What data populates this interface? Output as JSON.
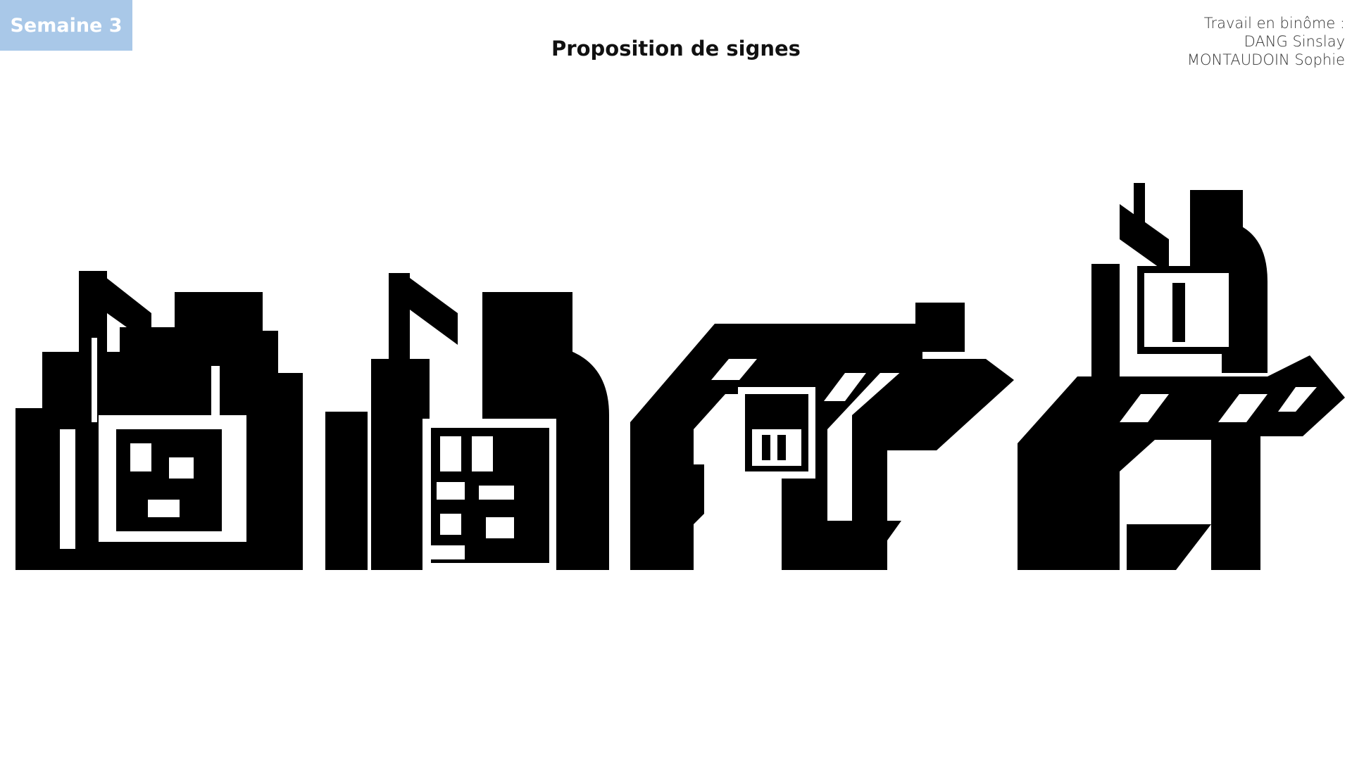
{
  "badge": {
    "label": "Semaine 3",
    "color": "#a9c8e8"
  },
  "title": "Proposition de signes",
  "authors": {
    "line1": "Travail en binôme :",
    "line2": "DANG Sinslay",
    "line3": "MONTAUDOIN Sophie"
  },
  "signs": {
    "count": 4,
    "ink_color": "#000000"
  }
}
